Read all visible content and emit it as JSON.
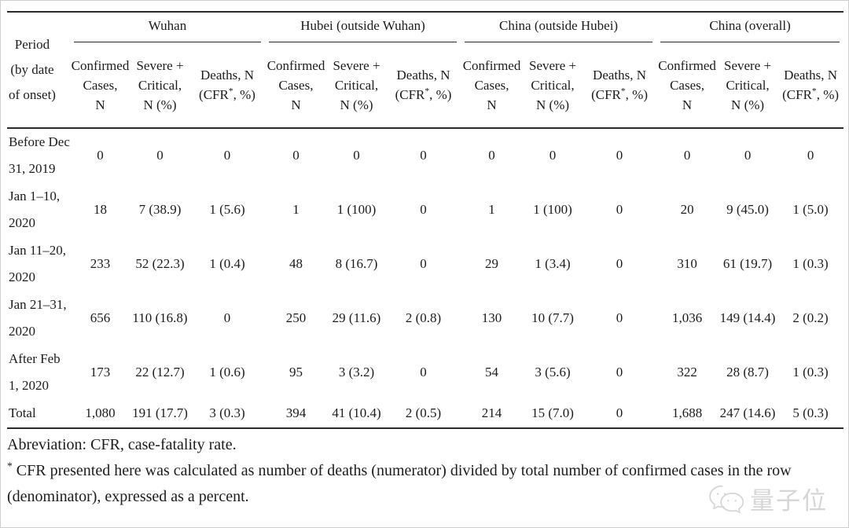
{
  "table": {
    "period_header_lines": [
      "Period",
      "(by date",
      "of onset)"
    ],
    "groups": [
      {
        "label": "Wuhan"
      },
      {
        "label": "Hubei (outside Wuhan)"
      },
      {
        "label": "China (outside Hubei)"
      },
      {
        "label": "China (overall)"
      }
    ],
    "subheaders": {
      "confirmed_lines": [
        "Confirmed",
        "Cases,",
        "N"
      ],
      "severe_lines": [
        "Severe +",
        "Critical,",
        "N (%)"
      ],
      "deaths_line1": "Deaths, N",
      "deaths_line2_open": "(CFR",
      "deaths_star": "*",
      "deaths_line2_close": ", %)"
    },
    "rows": [
      {
        "period": [
          "Before Dec",
          "31, 2019"
        ],
        "values": [
          "0",
          "0",
          "0",
          "0",
          "0",
          "0",
          "0",
          "0",
          "0",
          "0",
          "0",
          "0"
        ]
      },
      {
        "period": [
          "Jan 1–10,",
          "2020"
        ],
        "values": [
          "18",
          "7 (38.9)",
          "1 (5.6)",
          "1",
          "1 (100)",
          "0",
          "1",
          "1 (100)",
          "0",
          "20",
          "9 (45.0)",
          "1 (5.0)"
        ]
      },
      {
        "period": [
          "Jan 11–20,",
          "2020"
        ],
        "values": [
          "233",
          "52 (22.3)",
          "1 (0.4)",
          "48",
          "8 (16.7)",
          "0",
          "29",
          "1 (3.4)",
          "0",
          "310",
          "61 (19.7)",
          "1 (0.3)"
        ]
      },
      {
        "period": [
          "Jan 21–31,",
          "2020"
        ],
        "values": [
          "656",
          "110 (16.8)",
          "0",
          "250",
          "29 (11.6)",
          "2 (0.8)",
          "130",
          "10 (7.7)",
          "0",
          "1,036",
          "149 (14.4)",
          "2 (0.2)"
        ]
      },
      {
        "period": [
          "After Feb",
          "1, 2020"
        ],
        "values": [
          "173",
          "22 (12.7)",
          "1 (0.6)",
          "95",
          "3 (3.2)",
          "0",
          "54",
          "3 (5.6)",
          "0",
          "322",
          "28 (8.7)",
          "1 (0.3)"
        ]
      },
      {
        "period": [
          "Total"
        ],
        "values": [
          "1,080",
          "191 (17.7)",
          "3 (0.3)",
          "394",
          "41 (10.4)",
          "2 (0.5)",
          "214",
          "15 (7.0)",
          "0",
          "1,688",
          "247 (14.6)",
          "5 (0.3)"
        ]
      }
    ]
  },
  "footnotes": {
    "abbreviation": "Abreviation: CFR, case-fatality rate.",
    "cfr_star": "*",
    "cfr_note": "CFR presented here was calculated as number of deaths (numerator) divided by total number of confirmed cases in the row (denominator), expressed as a percent."
  },
  "watermark": {
    "text": "量子位",
    "color": "#d6d6d6"
  },
  "colors": {
    "rule": "#2b2b2b",
    "text": "#1c1c1c",
    "background": "#ffffff",
    "frame": "#cfcfcf"
  }
}
